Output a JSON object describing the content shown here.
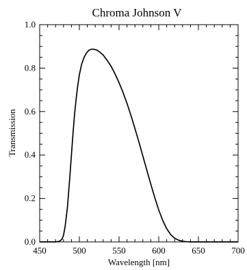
{
  "chart_data": {
    "type": "line",
    "title": "Chroma Johnson V",
    "xlabel": "Wavelength [nm]",
    "ylabel": "Transmission",
    "xlim": [
      450,
      700
    ],
    "ylim": [
      0.0,
      1.0
    ],
    "x_ticks": [
      450,
      500,
      550,
      600,
      650,
      700
    ],
    "y_ticks": [
      0.0,
      0.2,
      0.4,
      0.6,
      0.8,
      1.0
    ],
    "x_tick_labels": [
      "450",
      "500",
      "550",
      "600",
      "650",
      "700"
    ],
    "y_tick_labels": [
      "0.0",
      "0.2",
      "0.4",
      "0.6",
      "0.8",
      "1.0"
    ],
    "grid": false,
    "legend": "none",
    "line_color": "#000000",
    "series": [
      {
        "x": [
          450,
          470,
          475,
          478,
          480,
          482,
          485,
          488,
          490,
          492,
          494,
          496,
          498,
          500,
          503,
          506,
          509,
          512,
          515,
          518,
          522,
          526,
          530,
          535,
          540,
          545,
          550,
          555,
          560,
          565,
          570,
          575,
          580,
          585,
          590,
          595,
          600,
          605,
          610,
          615,
          620,
          625,
          630,
          635,
          640,
          645,
          650,
          700
        ],
        "y": [
          0.0,
          0.0,
          0.003,
          0.012,
          0.03,
          0.07,
          0.16,
          0.3,
          0.4,
          0.5,
          0.59,
          0.66,
          0.72,
          0.77,
          0.82,
          0.85,
          0.87,
          0.882,
          0.887,
          0.887,
          0.883,
          0.873,
          0.86,
          0.836,
          0.808,
          0.773,
          0.733,
          0.688,
          0.638,
          0.582,
          0.522,
          0.46,
          0.395,
          0.33,
          0.266,
          0.204,
          0.147,
          0.099,
          0.061,
          0.034,
          0.017,
          0.008,
          0.003,
          0.001,
          0.0,
          0.0,
          0.0,
          0.0
        ]
      }
    ]
  }
}
